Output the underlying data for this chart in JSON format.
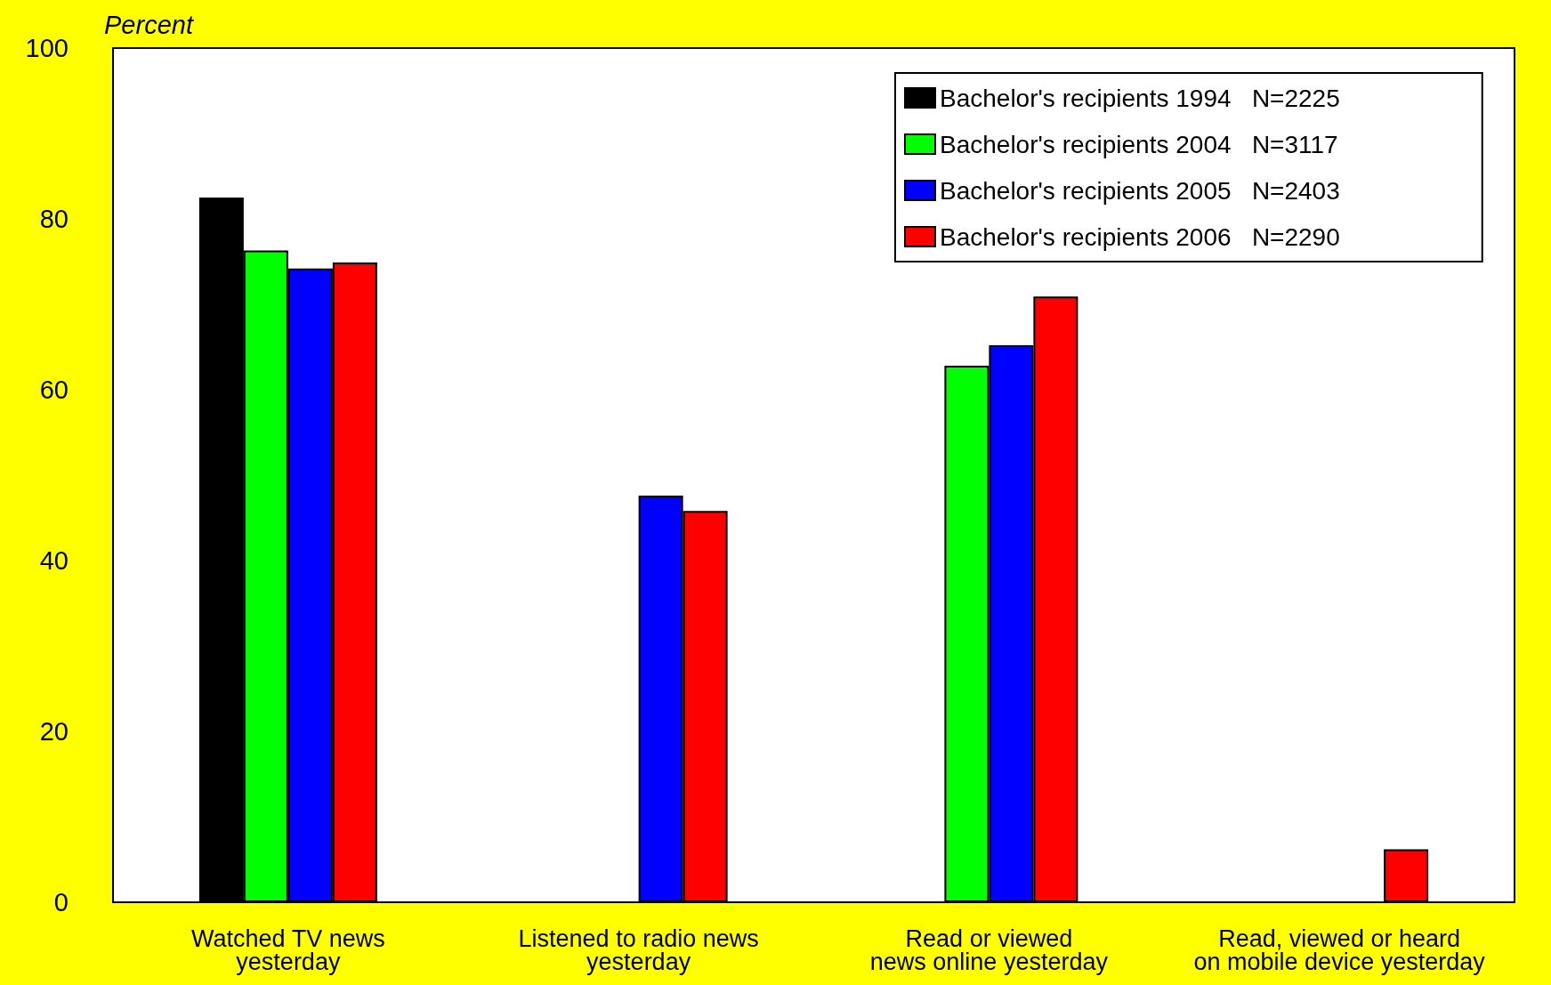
{
  "chart_data": {
    "type": "bar",
    "ylabel": "Percent",
    "categories": [
      "Watched TV news\nyesterday",
      "Listened to radio news\nyesterday",
      "Read or viewed\nnews online yesterday",
      "Read, viewed or heard\non mobile device yesterday"
    ],
    "series": [
      {
        "name": "Bachelor's recipients 1994   N=2225",
        "color": "#000000",
        "values": [
          82.5,
          null,
          null,
          null
        ]
      },
      {
        "name": "Bachelor's recipients 2004   N=3117",
        "color": "#00ff00",
        "values": [
          76.3,
          null,
          62.8,
          null
        ]
      },
      {
        "name": "Bachelor's recipients 2005   N=2403",
        "color": "#0000ff",
        "values": [
          74.2,
          47.6,
          65.2,
          null
        ]
      },
      {
        "name": "Bachelor's recipients 2006   N=2290",
        "color": "#ff0000",
        "values": [
          74.9,
          45.8,
          70.9,
          6.2
        ]
      }
    ],
    "ylim": [
      0,
      100
    ],
    "yticks": [
      0,
      20,
      40,
      60,
      80,
      100
    ],
    "grid": false,
    "legend": "top right"
  }
}
